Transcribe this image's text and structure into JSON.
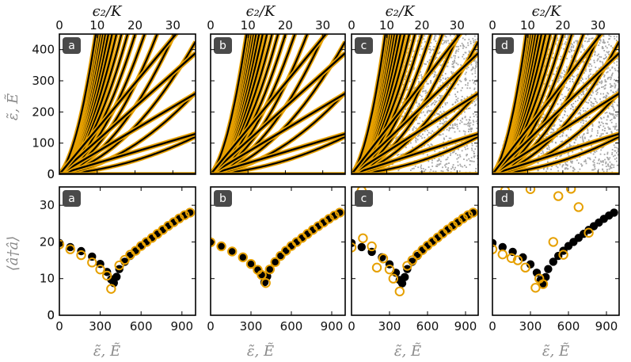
{
  "figure": {
    "top_axis_label": "ϵ₂/K",
    "top_panels_ylabel": "ε̃, Ẽ",
    "bottom_panels_ylabel": "⟨â†â⟩",
    "bottom_axis_label": "ε̃, Ẽ",
    "colors": {
      "line": "#000000",
      "marker": "#e6a000",
      "scatter": "#a6a6a6",
      "badge": "#4a4a4a"
    }
  },
  "chart_data": [
    {
      "type": "line",
      "panel": "a",
      "row": "top",
      "top_xlabel": "ϵ₂/K",
      "ylabel": "ε̃, Ẽ",
      "xlim": [
        0,
        36
      ],
      "ylim": [
        0,
        450
      ],
      "xticks": [
        0,
        10,
        20,
        30
      ],
      "yticks": [
        0,
        100,
        200,
        300,
        400
      ],
      "grey_scatter": "none",
      "note": "energy levels: black curves with orange overlays"
    },
    {
      "type": "line",
      "panel": "b",
      "row": "top",
      "top_xlabel": "ϵ₂/K",
      "xlim": [
        0,
        36
      ],
      "ylim": [
        0,
        450
      ],
      "xticks": [
        0,
        10,
        20,
        30
      ],
      "yticks": [
        0,
        100,
        200,
        300,
        400
      ],
      "grey_scatter": "none"
    },
    {
      "type": "line",
      "panel": "c",
      "row": "top",
      "top_xlabel": "ϵ₂/K",
      "xlim": [
        0,
        36
      ],
      "ylim": [
        0,
        450
      ],
      "xticks": [
        0,
        10,
        20,
        30
      ],
      "yticks": [
        0,
        100,
        200,
        300,
        400
      ],
      "grey_scatter": "dense"
    },
    {
      "type": "line",
      "panel": "d",
      "row": "top",
      "top_xlabel": "ϵ₂/K",
      "xlim": [
        0,
        36
      ],
      "ylim": [
        0,
        450
      ],
      "xticks": [
        0,
        10,
        20,
        30
      ],
      "yticks": [
        0,
        100,
        200,
        300,
        400
      ],
      "grey_scatter": "dense"
    },
    {
      "type": "scatter",
      "panel": "a",
      "row": "bottom",
      "xlabel": "ε̃, Ẽ",
      "ylabel": "⟨â†â⟩",
      "xlim": [
        0,
        1000
      ],
      "ylim": [
        0,
        35
      ],
      "xticks": [
        0,
        300,
        600,
        900
      ],
      "yticks": [
        0,
        10,
        20,
        30
      ],
      "series": [
        {
          "name": "exact",
          "style": "black-filled",
          "x": [
            0,
            80,
            160,
            240,
            300,
            350,
            380,
            400,
            420,
            440,
            480,
            520,
            560,
            600,
            640,
            680,
            720,
            760,
            800,
            840,
            880,
            920,
            960
          ],
          "y": [
            19.7,
            18.6,
            17.5,
            16.0,
            14.0,
            11.8,
            9.8,
            8.8,
            10.5,
            12.6,
            14.6,
            16.2,
            17.5,
            18.8,
            19.9,
            21.0,
            22.1,
            23.2,
            24.3,
            25.3,
            26.3,
            27.2,
            28.0
          ]
        },
        {
          "name": "approx",
          "style": "orange-ring",
          "x": [
            0,
            80,
            160,
            240,
            300,
            350,
            380,
            440,
            480,
            520,
            560,
            600,
            640,
            680,
            720,
            760,
            800,
            840,
            880,
            920,
            960
          ],
          "y": [
            19.3,
            18.0,
            16.4,
            14.4,
            12.5,
            10.8,
            7.2,
            13.6,
            15.1,
            16.5,
            17.6,
            18.9,
            20.0,
            21.1,
            22.2,
            23.3,
            24.4,
            25.4,
            26.4,
            27.3,
            28.0
          ]
        }
      ]
    },
    {
      "type": "scatter",
      "panel": "b",
      "row": "bottom",
      "xlabel": "ε̃, Ẽ",
      "xlim": [
        0,
        1000
      ],
      "ylim": [
        0,
        35
      ],
      "xticks": [
        0,
        300,
        600,
        900
      ],
      "yticks": [
        0,
        10,
        20,
        30
      ],
      "series": [
        {
          "name": "exact",
          "style": "black-filled",
          "x": [
            0,
            80,
            160,
            240,
            300,
            350,
            380,
            400,
            420,
            440,
            480,
            520,
            560,
            600,
            640,
            680,
            720,
            760,
            800,
            840,
            880,
            920,
            960
          ],
          "y": [
            19.9,
            18.8,
            17.4,
            15.8,
            14.0,
            12.4,
            11.0,
            9.0,
            10.6,
            12.5,
            14.5,
            16.2,
            17.6,
            18.9,
            20.0,
            21.1,
            22.2,
            23.3,
            24.3,
            25.3,
            26.3,
            27.2,
            28.0
          ]
        },
        {
          "name": "approx",
          "style": "orange-ring",
          "x": [
            0,
            80,
            160,
            240,
            300,
            350,
            380,
            410,
            440,
            480,
            520,
            560,
            600,
            640,
            680,
            720,
            760,
            800,
            840,
            880,
            920,
            960
          ],
          "y": [
            19.9,
            18.8,
            17.4,
            15.8,
            14.0,
            12.4,
            11.0,
            8.8,
            12.5,
            14.5,
            16.2,
            17.6,
            18.9,
            20.0,
            21.1,
            22.2,
            23.3,
            24.3,
            25.3,
            26.3,
            27.2,
            28.0
          ]
        }
      ]
    },
    {
      "type": "scatter",
      "panel": "c",
      "row": "bottom",
      "xlabel": "ε̃, Ẽ",
      "xlim": [
        0,
        1000
      ],
      "ylim": [
        0,
        35
      ],
      "xticks": [
        0,
        300,
        600,
        900
      ],
      "yticks": [
        0,
        10,
        20,
        30
      ],
      "series": [
        {
          "name": "exact",
          "style": "black-filled",
          "x": [
            0,
            80,
            160,
            240,
            300,
            350,
            380,
            400,
            420,
            440,
            480,
            520,
            560,
            600,
            640,
            680,
            720,
            760,
            800,
            840,
            880,
            920,
            960
          ],
          "y": [
            19.7,
            18.6,
            17.3,
            15.8,
            13.9,
            11.6,
            9.6,
            8.7,
            10.4,
            12.6,
            14.6,
            16.2,
            17.6,
            18.9,
            20.0,
            21.1,
            22.2,
            23.3,
            24.3,
            25.3,
            26.3,
            27.2,
            28.0
          ]
        },
        {
          "name": "approx",
          "style": "orange-ring",
          "x": [
            0,
            80,
            90,
            160,
            200,
            250,
            300,
            330,
            380,
            440,
            480,
            520,
            560,
            600,
            640,
            680,
            720,
            760,
            800,
            840,
            880,
            920,
            960
          ],
          "y": [
            18.5,
            34.0,
            21.0,
            18.8,
            13.0,
            15.5,
            12.5,
            10.0,
            6.5,
            13.5,
            15.0,
            16.5,
            17.8,
            19.0,
            20.1,
            21.2,
            22.3,
            23.4,
            24.4,
            25.4,
            26.4,
            27.3,
            28.0
          ]
        }
      ]
    },
    {
      "type": "scatter",
      "panel": "d",
      "row": "bottom",
      "xlabel": "ε̃, Ẽ",
      "xlim": [
        0,
        1000
      ],
      "ylim": [
        0,
        35
      ],
      "xticks": [
        0,
        300,
        600,
        900
      ],
      "yticks": [
        0,
        10,
        20,
        30
      ],
      "series": [
        {
          "name": "exact",
          "style": "black-filled",
          "x": [
            0,
            80,
            160,
            240,
            300,
            350,
            380,
            400,
            420,
            440,
            480,
            520,
            560,
            600,
            640,
            680,
            720,
            760,
            800,
            840,
            880,
            920,
            960
          ],
          "y": [
            19.7,
            18.6,
            17.3,
            15.8,
            13.9,
            11.6,
            9.6,
            8.7,
            10.4,
            12.6,
            14.6,
            16.2,
            17.6,
            18.9,
            20.0,
            21.1,
            22.2,
            23.3,
            24.3,
            25.3,
            26.3,
            27.2,
            28.0
          ]
        },
        {
          "name": "approx",
          "style": "orange-ring",
          "x": [
            0,
            80,
            100,
            150,
            200,
            260,
            300,
            340,
            370,
            400,
            480,
            520,
            560,
            620,
            680,
            760
          ],
          "y": [
            18.0,
            16.6,
            34.0,
            15.6,
            15.0,
            13.0,
            34.4,
            7.5,
            10.0,
            8.5,
            20.0,
            32.5,
            16.5,
            34.5,
            29.5,
            22.5
          ]
        }
      ]
    }
  ]
}
